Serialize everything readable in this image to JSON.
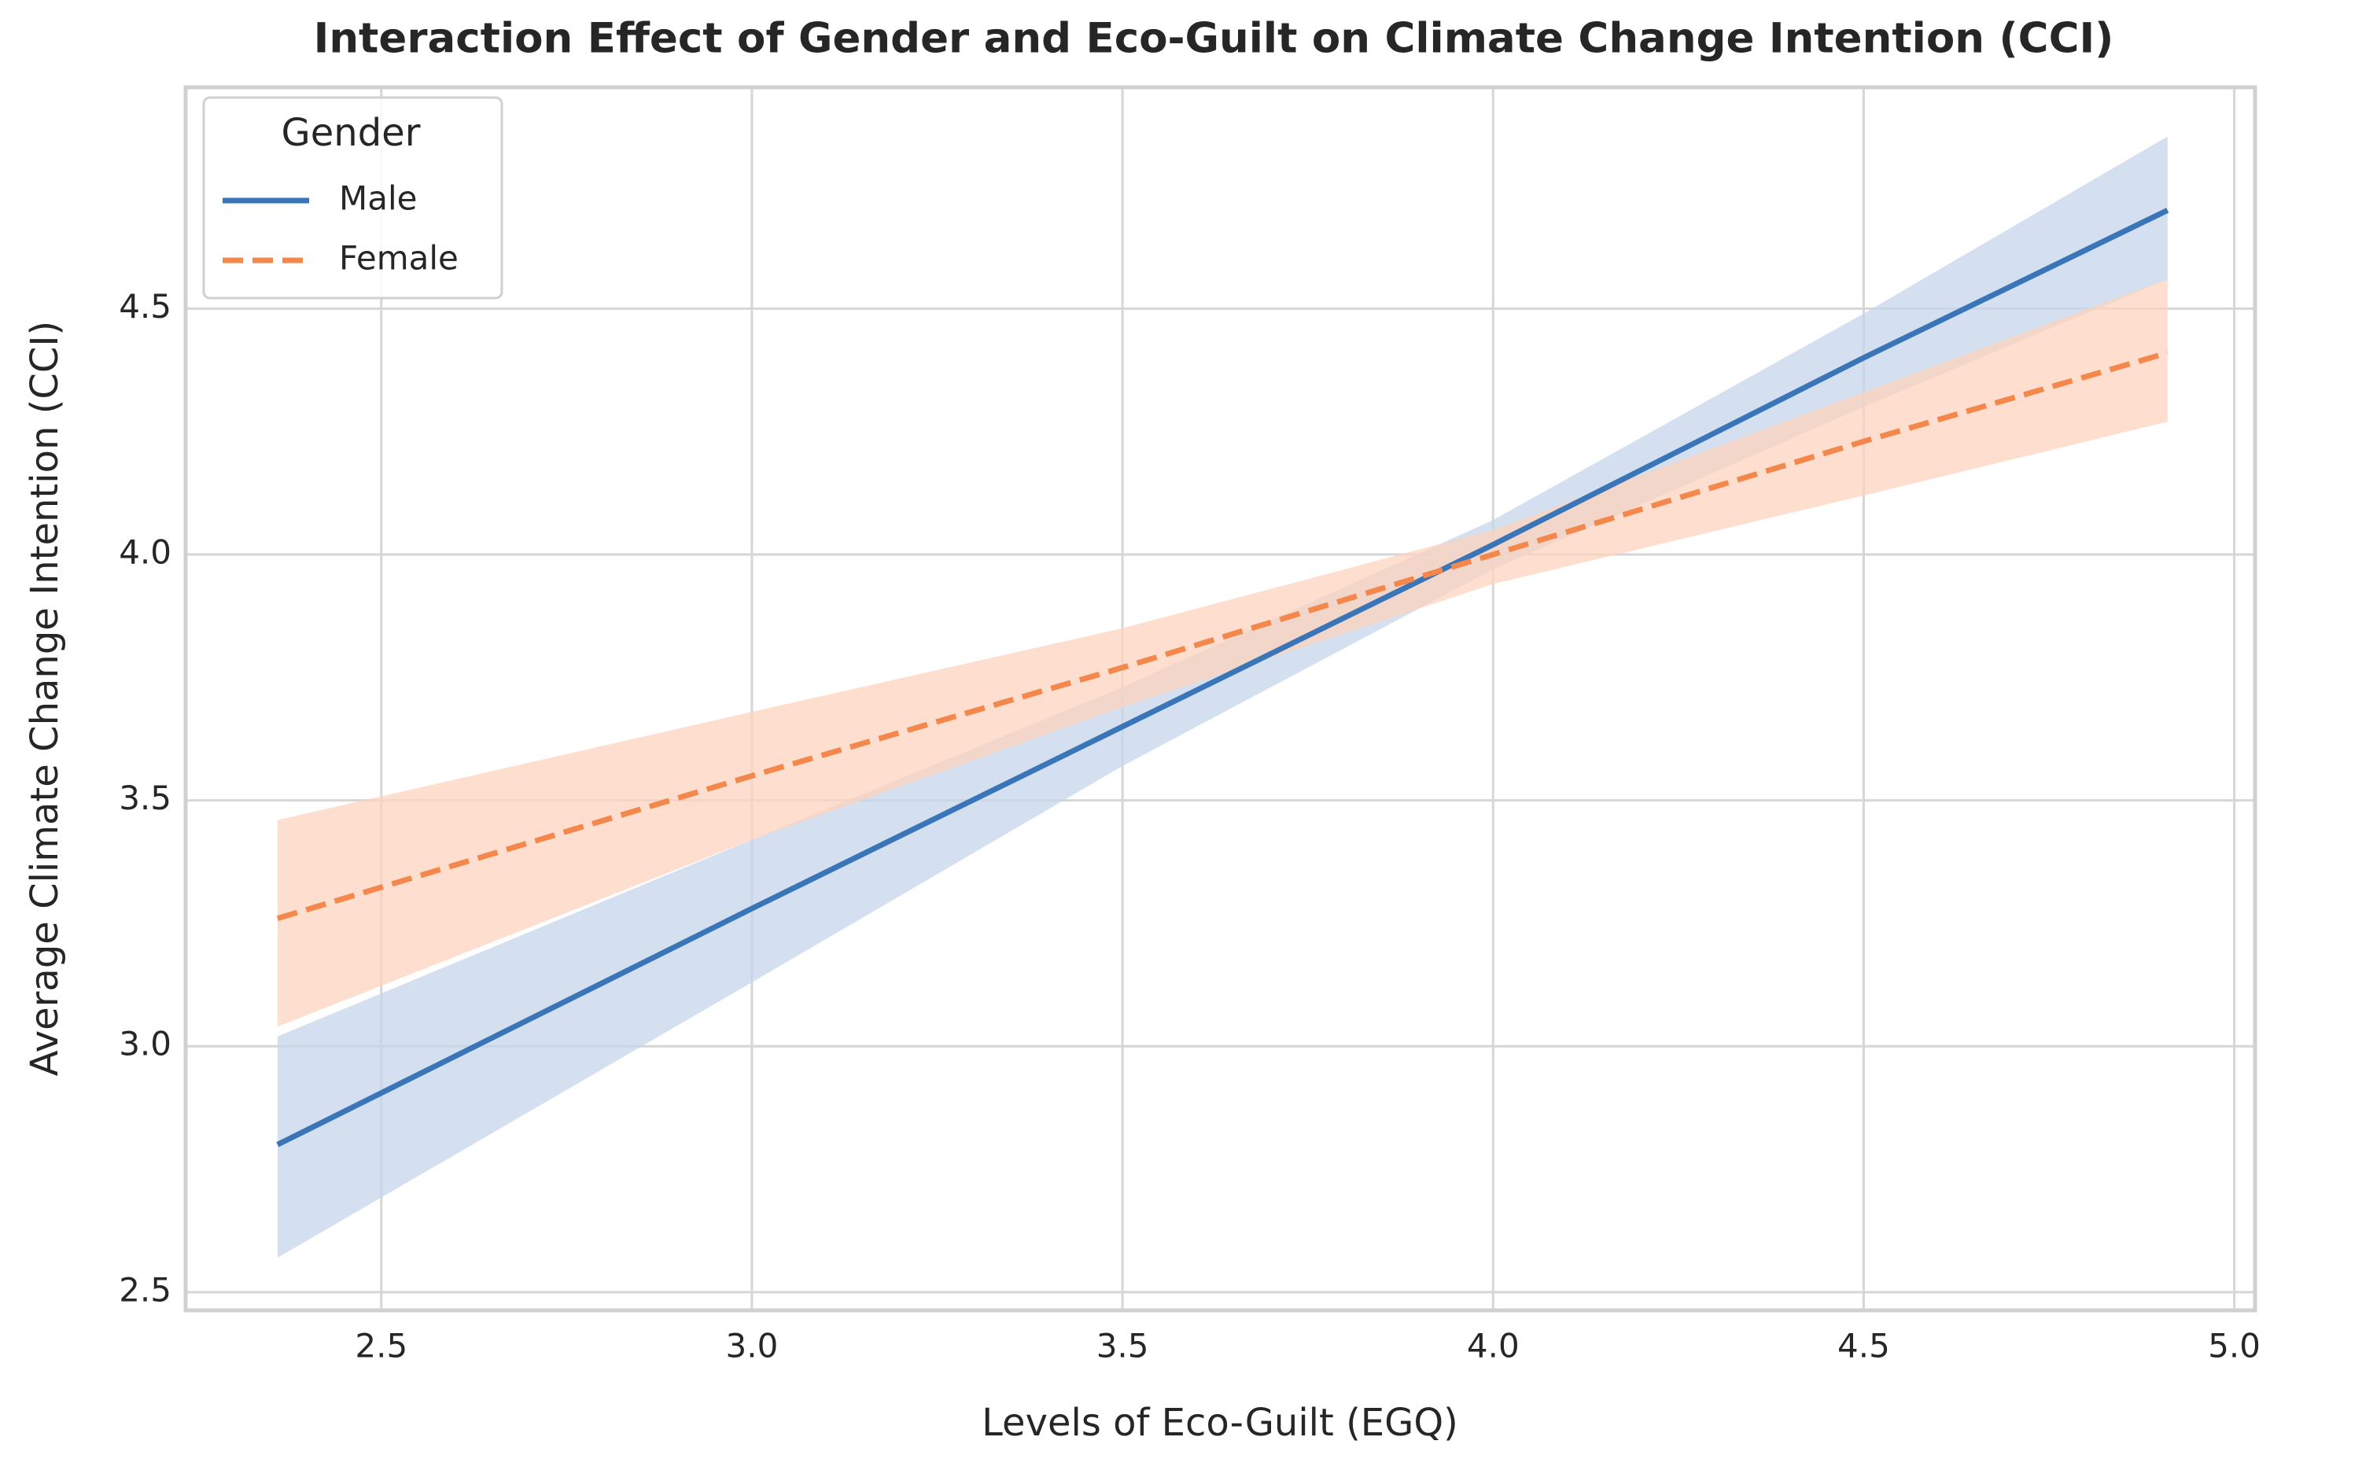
{
  "chart_data": {
    "type": "line",
    "title": "Interaction Effect of Gender and Eco-Guilt on Climate Change Intention (CCI)",
    "x_label": "Levels of Eco-Guilt (EGQ)",
    "y_label": "Average Climate Change Intention (CCI)",
    "legend_title": "Gender",
    "legend_position": "upper left",
    "grid": true,
    "x": [
      2.36,
      3.0,
      3.5,
      4.0,
      4.5,
      4.91
    ],
    "series": [
      {
        "name": "Male",
        "color": "#3a75b8",
        "band_color": "#c5d5ea",
        "linestyle": "solid",
        "values": [
          2.8,
          3.28,
          3.65,
          4.02,
          4.4,
          4.7
        ],
        "lower": [
          2.57,
          3.13,
          3.57,
          3.97,
          4.3,
          4.56
        ],
        "upper": [
          3.02,
          3.42,
          3.73,
          4.07,
          4.49,
          4.85
        ]
      },
      {
        "name": "Female",
        "color": "#f4874b",
        "band_color": "#fdd3bd",
        "linestyle": "dashed",
        "values": [
          3.26,
          3.55,
          3.77,
          4.0,
          4.23,
          4.41
        ],
        "lower": [
          3.04,
          3.42,
          3.69,
          3.94,
          4.12,
          4.27
        ],
        "upper": [
          3.46,
          3.68,
          3.85,
          4.05,
          4.33,
          4.56
        ]
      }
    ],
    "xlim": [
      2.236,
      5.028
    ],
    "ylim": [
      2.463,
      4.95
    ],
    "xticks": [
      {
        "value": 2.5,
        "label": "2.5"
      },
      {
        "value": 3.0,
        "label": "3.0"
      },
      {
        "value": 3.5,
        "label": "3.5"
      },
      {
        "value": 4.0,
        "label": "4.0"
      },
      {
        "value": 4.5,
        "label": "4.5"
      },
      {
        "value": 5.0,
        "label": "5.0"
      }
    ],
    "yticks": [
      {
        "value": 2.5,
        "label": "2.5"
      },
      {
        "value": 3.0,
        "label": "3.0"
      },
      {
        "value": 3.5,
        "label": "3.5"
      },
      {
        "value": 4.0,
        "label": "4.0"
      },
      {
        "value": 4.5,
        "label": "4.5"
      }
    ]
  }
}
